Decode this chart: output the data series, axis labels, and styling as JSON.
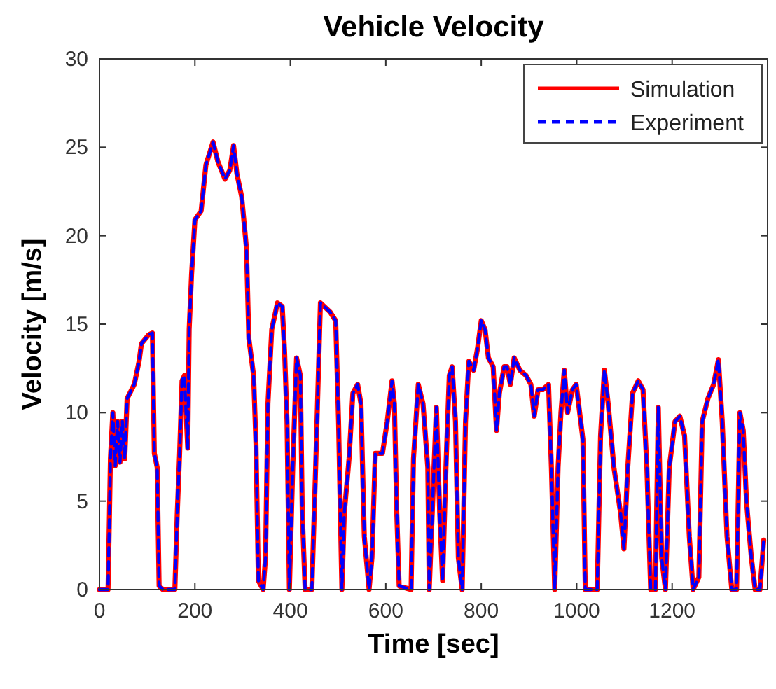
{
  "chart_data": {
    "type": "line",
    "title": "Vehicle Velocity",
    "xlabel": "Time [sec]",
    "ylabel": "Velocity [m/s]",
    "x": [
      0,
      18,
      21,
      23,
      28,
      33,
      38,
      43,
      48,
      53,
      58,
      73,
      83,
      88,
      103,
      111,
      115,
      121,
      125,
      133,
      158,
      163,
      168,
      173,
      178,
      185,
      188,
      193,
      200,
      213,
      223,
      238,
      248,
      263,
      273,
      281,
      288,
      298,
      308,
      313,
      323,
      328,
      333,
      343,
      348,
      353,
      361,
      373,
      383,
      388,
      393,
      398,
      405,
      413,
      421,
      425,
      431,
      445,
      453,
      463,
      483,
      495,
      501,
      508,
      513,
      523,
      531,
      541,
      548,
      555,
      565,
      571,
      578,
      593,
      603,
      613,
      618,
      623,
      628,
      653,
      658,
      668,
      678,
      688,
      691,
      701,
      706,
      713,
      719,
      726,
      733,
      739,
      746,
      752,
      760,
      767,
      774,
      784,
      792,
      800,
      808,
      815,
      825,
      832,
      838,
      848,
      854,
      861,
      869,
      881,
      894,
      904,
      911,
      919,
      929,
      941,
      947,
      954,
      961,
      967,
      974,
      981,
      991,
      999,
      1013,
      1018,
      1043,
      1050,
      1058,
      1066,
      1078,
      1092,
      1099,
      1107,
      1117,
      1129,
      1139,
      1147,
      1155,
      1165,
      1171,
      1178,
      1186,
      1194,
      1206,
      1216,
      1226,
      1236,
      1244,
      1256,
      1263,
      1275,
      1287,
      1297,
      1305,
      1315,
      1325,
      1335,
      1342,
      1349,
      1356,
      1366,
      1374,
      1384,
      1392
    ],
    "series": [
      {
        "name": "Simulation",
        "color": "#ff0000",
        "line_style": "solid",
        "values": [
          0,
          0,
          4.3,
          7.4,
          10,
          7,
          9.5,
          7.2,
          9.5,
          7.4,
          10.8,
          11.6,
          12.9,
          13.9,
          14.4,
          14.5,
          7.7,
          6.9,
          0.2,
          0,
          0,
          4.3,
          7.7,
          11.8,
          12.1,
          8,
          14.7,
          17.8,
          20.9,
          21.4,
          24,
          25.3,
          24.2,
          23.2,
          23.7,
          25.1,
          23.5,
          22.2,
          19.3,
          14.2,
          12.1,
          8.2,
          0.5,
          0,
          1.8,
          10.5,
          14.7,
          16.2,
          16,
          13.4,
          9.5,
          0,
          6.9,
          13.1,
          12.1,
          4.3,
          0,
          0,
          6.9,
          16.2,
          15.7,
          15.2,
          9.5,
          0,
          4.3,
          7.4,
          11.1,
          11.6,
          10.5,
          3,
          0,
          1.8,
          7.7,
          7.7,
          9.5,
          11.8,
          10.5,
          4.3,
          0.2,
          0,
          7.4,
          11.6,
          10.5,
          6.9,
          0,
          6.9,
          10.3,
          4.3,
          0.5,
          6.9,
          12.1,
          12.6,
          9.5,
          1.8,
          0,
          9.5,
          12.9,
          12.4,
          13.6,
          15.2,
          14.7,
          13.1,
          12.6,
          9,
          11.1,
          12.6,
          12.6,
          11.6,
          13.1,
          12.4,
          12.1,
          11.6,
          9.8,
          11.3,
          11.3,
          11.6,
          6.9,
          0,
          6.9,
          10,
          12.4,
          10,
          11.3,
          11.6,
          8.5,
          0,
          0,
          8.7,
          12.4,
          10.5,
          6.9,
          4.3,
          2.3,
          6.9,
          11.1,
          11.8,
          11.3,
          6.9,
          0,
          0,
          10.3,
          1.8,
          0,
          6.9,
          9.5,
          9.8,
          8.7,
          3,
          0,
          0.7,
          9.5,
          10.8,
          11.6,
          13,
          9.5,
          3,
          0,
          0,
          10,
          9,
          4.9,
          1.8,
          0,
          0,
          2.8
        ]
      },
      {
        "name": "Experiment",
        "color": "#0000ff",
        "line_style": "dashed",
        "values": [
          0,
          0,
          4.3,
          7.4,
          10,
          7,
          9.5,
          7.2,
          9.5,
          7.4,
          10.8,
          11.6,
          12.9,
          13.9,
          14.4,
          14.5,
          7.7,
          6.9,
          0.2,
          0,
          0,
          4.3,
          7.7,
          11.8,
          12.1,
          8,
          14.7,
          17.8,
          20.9,
          21.4,
          24,
          25.3,
          24.2,
          23.2,
          23.7,
          25.1,
          23.5,
          22.2,
          19.3,
          14.2,
          12.1,
          8.2,
          0.5,
          0,
          1.8,
          10.5,
          14.7,
          16.2,
          16,
          13.4,
          9.5,
          0,
          6.9,
          13.1,
          12.1,
          4.3,
          0,
          0,
          6.9,
          16.2,
          15.7,
          15.2,
          9.5,
          0,
          4.3,
          7.4,
          11.1,
          11.6,
          10.5,
          3,
          0,
          1.8,
          7.7,
          7.7,
          9.5,
          11.8,
          10.5,
          4.3,
          0.2,
          0,
          7.4,
          11.6,
          10.5,
          6.9,
          0,
          6.9,
          10.3,
          4.3,
          0.5,
          6.9,
          12.1,
          12.6,
          9.5,
          1.8,
          0,
          9.5,
          12.9,
          12.4,
          13.6,
          15.2,
          14.7,
          13.1,
          12.6,
          9,
          11.1,
          12.6,
          12.6,
          11.6,
          13.1,
          12.4,
          12.1,
          11.6,
          9.8,
          11.3,
          11.3,
          11.6,
          6.9,
          0,
          6.9,
          10,
          12.4,
          10,
          11.3,
          11.6,
          8.5,
          0,
          0,
          8.7,
          12.4,
          10.5,
          6.9,
          4.3,
          2.3,
          6.9,
          11.1,
          11.8,
          11.3,
          6.9,
          0,
          0,
          10.3,
          1.8,
          0,
          6.9,
          9.5,
          9.8,
          8.7,
          3,
          0,
          0.7,
          9.5,
          10.8,
          11.6,
          13,
          9.5,
          3,
          0,
          0,
          10,
          9,
          4.9,
          1.8,
          0,
          0,
          2.8
        ]
      }
    ],
    "xlim": [
      0,
      1400
    ],
    "xticks": [
      0,
      200,
      400,
      600,
      800,
      1000,
      1200
    ],
    "ylim": [
      0,
      30
    ],
    "yticks": [
      0,
      5,
      10,
      15,
      20,
      25,
      30
    ],
    "grid": false,
    "legend": "top right",
    "marker": "none"
  }
}
